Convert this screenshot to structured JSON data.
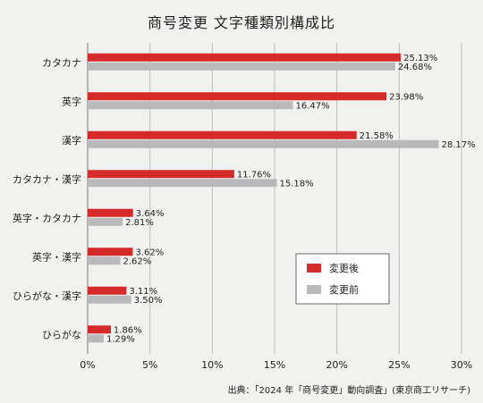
{
  "chart_data": {
    "type": "bar",
    "orientation": "horizontal",
    "title": "商号変更 文字種類別構成比",
    "categories": [
      "カタカナ",
      "英字",
      "漢字",
      "カタカナ・漢字",
      "英字・カタカナ",
      "英字・漢字",
      "ひらがな・漢字",
      "ひらがな"
    ],
    "series": [
      {
        "name": "変更後",
        "color": "#d42a2a",
        "values": [
          25.13,
          23.98,
          21.58,
          11.76,
          3.64,
          3.62,
          3.11,
          1.86
        ],
        "labels": [
          "25.13%",
          "23.98%",
          "21.58%",
          "11.76%",
          "3.64%",
          "3.62%",
          "3.11%",
          "1.86%"
        ]
      },
      {
        "name": "変更前",
        "color": "#b9b9bb",
        "values": [
          24.68,
          16.47,
          28.17,
          15.18,
          2.81,
          2.62,
          3.5,
          1.29
        ],
        "labels": [
          "24.68%",
          "16.47%",
          "28.17%",
          "15.18%",
          "2.81%",
          "2.62%",
          "3.50%",
          "1.29%"
        ]
      }
    ],
    "xlim": [
      0,
      30
    ],
    "xticks": [
      "0%",
      "5%",
      "10%",
      "15%",
      "20%",
      "25%",
      "30%"
    ],
    "grid": true,
    "legend_position": "right"
  },
  "source": "出典：「2024 年「商号変更」動向調査」(東京商工リサーチ)"
}
